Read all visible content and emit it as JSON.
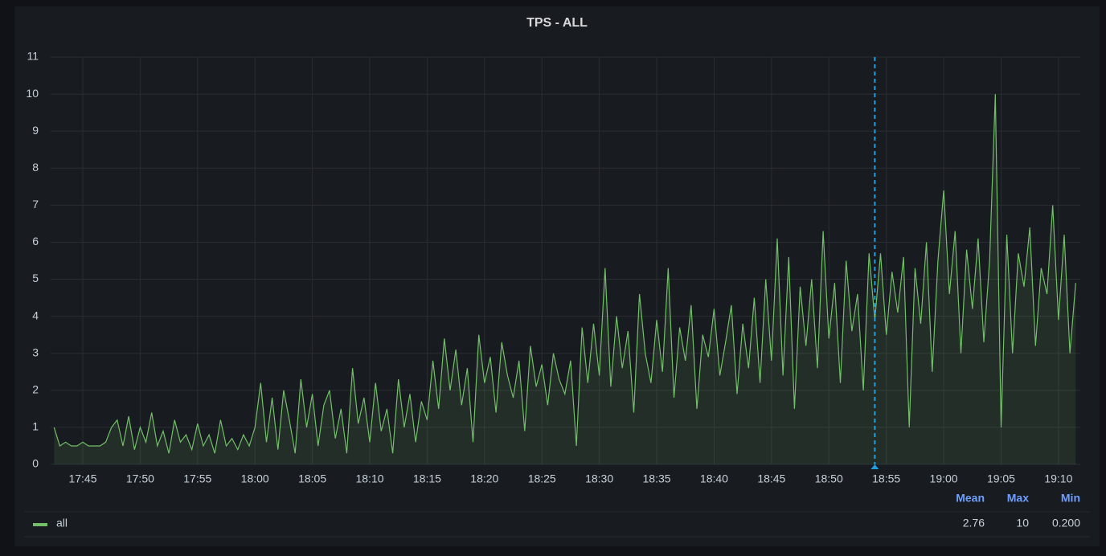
{
  "chart_data": {
    "type": "line",
    "title": "TPS - ALL",
    "x": [
      1062.5,
      1063,
      1063.5,
      1064,
      1064.5,
      1065,
      1065.5,
      1066,
      1066.5,
      1067,
      1067.5,
      1068,
      1068.5,
      1069,
      1069.5,
      1070,
      1070.5,
      1071,
      1071.5,
      1072,
      1072.5,
      1073,
      1073.5,
      1074,
      1074.5,
      1075,
      1075.5,
      1076,
      1076.5,
      1077,
      1077.5,
      1078,
      1078.5,
      1079,
      1079.5,
      1080,
      1080.5,
      1081,
      1081.5,
      1082,
      1082.5,
      1083,
      1083.5,
      1084,
      1084.5,
      1085,
      1085.5,
      1086,
      1086.5,
      1087,
      1087.5,
      1088,
      1088.5,
      1089,
      1089.5,
      1090,
      1090.5,
      1091,
      1091.5,
      1092,
      1092.5,
      1093,
      1093.5,
      1094,
      1094.5,
      1095,
      1095.5,
      1096,
      1096.5,
      1097,
      1097.5,
      1098,
      1098.5,
      1099,
      1099.5,
      1100,
      1100.5,
      1101,
      1101.5,
      1102,
      1102.5,
      1103,
      1103.5,
      1104,
      1104.5,
      1105,
      1105.5,
      1106,
      1106.5,
      1107,
      1107.5,
      1108,
      1108.5,
      1109,
      1109.5,
      1110,
      1110.5,
      1111,
      1111.5,
      1112,
      1112.5,
      1113,
      1113.5,
      1114,
      1114.5,
      1115,
      1115.5,
      1116,
      1116.5,
      1117,
      1117.5,
      1118,
      1118.5,
      1119,
      1119.5,
      1120,
      1120.5,
      1121,
      1121.5,
      1122,
      1122.5,
      1123,
      1123.5,
      1124,
      1124.5,
      1125,
      1125.5,
      1126,
      1126.5,
      1127,
      1127.5,
      1128,
      1128.5,
      1129,
      1129.5,
      1130,
      1130.5,
      1131,
      1131.5,
      1132,
      1132.5,
      1133,
      1133.5,
      1134,
      1134.5,
      1135,
      1135.5,
      1136,
      1136.5,
      1137,
      1137.5,
      1138,
      1138.5,
      1139,
      1139.5,
      1140,
      1140.5,
      1141,
      1141.5,
      1142,
      1142.5,
      1143,
      1143.5,
      1144,
      1144.5,
      1145,
      1145.5,
      1146,
      1146.5,
      1147,
      1147.5,
      1148,
      1148.5,
      1149,
      1149.5,
      1150,
      1150.5,
      1151,
      1151.5
    ],
    "series": [
      {
        "name": "all",
        "color": "#73bf69",
        "values": [
          1.0,
          0.5,
          0.6,
          0.5,
          0.5,
          0.6,
          0.5,
          0.5,
          0.5,
          0.6,
          1.0,
          1.2,
          0.5,
          1.3,
          0.4,
          1.0,
          0.6,
          1.4,
          0.5,
          0.9,
          0.3,
          1.2,
          0.6,
          0.8,
          0.4,
          1.1,
          0.5,
          0.8,
          0.3,
          1.2,
          0.5,
          0.7,
          0.4,
          0.8,
          0.5,
          1.0,
          2.2,
          0.6,
          1.8,
          0.4,
          2.0,
          1.2,
          0.3,
          2.3,
          1.0,
          1.9,
          0.5,
          1.6,
          2.0,
          0.7,
          1.5,
          0.3,
          2.6,
          1.1,
          1.8,
          0.6,
          2.2,
          0.9,
          1.5,
          0.3,
          2.3,
          1.0,
          1.9,
          0.6,
          1.7,
          1.2,
          2.8,
          1.5,
          3.4,
          2.0,
          3.1,
          1.6,
          2.6,
          0.6,
          3.5,
          2.2,
          2.9,
          1.4,
          3.3,
          2.4,
          1.8,
          2.8,
          0.9,
          3.2,
          2.1,
          2.7,
          1.6,
          3.0,
          2.3,
          1.9,
          2.8,
          0.5,
          3.7,
          2.2,
          3.8,
          2.4,
          5.3,
          2.1,
          4.0,
          2.6,
          3.6,
          1.4,
          4.6,
          3.0,
          2.2,
          3.9,
          2.5,
          5.3,
          1.8,
          3.7,
          2.8,
          4.3,
          1.5,
          3.5,
          2.9,
          4.2,
          2.4,
          3.3,
          4.3,
          1.9,
          3.8,
          2.6,
          4.5,
          2.2,
          5.0,
          2.8,
          6.1,
          2.4,
          5.6,
          1.5,
          4.8,
          3.2,
          5.0,
          2.6,
          6.3,
          3.4,
          4.9,
          2.2,
          5.5,
          3.6,
          4.6,
          2.0,
          5.7,
          3.9,
          5.7,
          3.5,
          5.2,
          4.1,
          5.6,
          1.0,
          5.3,
          3.8,
          6.0,
          2.5,
          5.5,
          7.4,
          4.6,
          6.3,
          3.0,
          5.8,
          4.2,
          6.1,
          3.3,
          5.5,
          10.0,
          1.0,
          6.2,
          3.0,
          5.7,
          4.8,
          6.4,
          3.2,
          5.3,
          4.6,
          7.0,
          3.9,
          6.2,
          3.0,
          4.9
        ],
        "stats": {
          "headers": [
            "Mean",
            "Max",
            "Min"
          ],
          "values": [
            2.76,
            10,
            0.2
          ],
          "value_labels": [
            "2.76",
            "10",
            "0.200"
          ]
        }
      }
    ],
    "annotation_x": 1134,
    "xlim": [
      1062.2,
      1151.9
    ],
    "ylim": [
      0,
      11
    ],
    "xticks": [
      {
        "value": 1065,
        "label": "17:45"
      },
      {
        "value": 1070,
        "label": "17:50"
      },
      {
        "value": 1075,
        "label": "17:55"
      },
      {
        "value": 1080,
        "label": "18:00"
      },
      {
        "value": 1085,
        "label": "18:05"
      },
      {
        "value": 1090,
        "label": "18:10"
      },
      {
        "value": 1095,
        "label": "18:15"
      },
      {
        "value": 1100,
        "label": "18:20"
      },
      {
        "value": 1105,
        "label": "18:25"
      },
      {
        "value": 1110,
        "label": "18:30"
      },
      {
        "value": 1115,
        "label": "18:35"
      },
      {
        "value": 1120,
        "label": "18:40"
      },
      {
        "value": 1125,
        "label": "18:45"
      },
      {
        "value": 1130,
        "label": "18:50"
      },
      {
        "value": 1135,
        "label": "18:55"
      },
      {
        "value": 1140,
        "label": "19:00"
      },
      {
        "value": 1145,
        "label": "19:05"
      },
      {
        "value": 1150,
        "label": "19:10"
      }
    ],
    "yticks": [
      0,
      1,
      2,
      3,
      4,
      5,
      6,
      7,
      8,
      9,
      10,
      11
    ],
    "grid": true
  }
}
